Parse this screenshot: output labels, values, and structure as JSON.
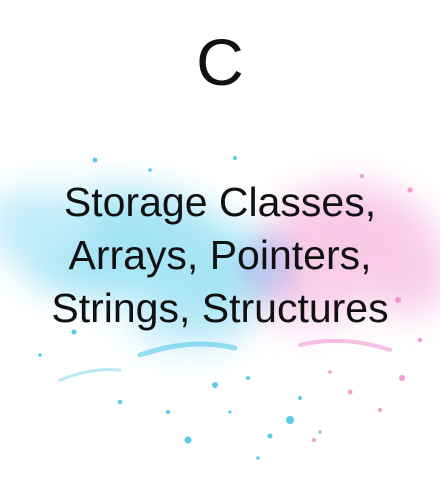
{
  "cover": {
    "title": "C",
    "lines": [
      "Storage Classes,",
      "Arrays, Pointers,",
      "Strings, Structures"
    ]
  },
  "colors": {
    "text": "#111111",
    "background": "#ffffff",
    "splash_blue": "#49c6ea",
    "splash_pink": "#f28ccd"
  }
}
